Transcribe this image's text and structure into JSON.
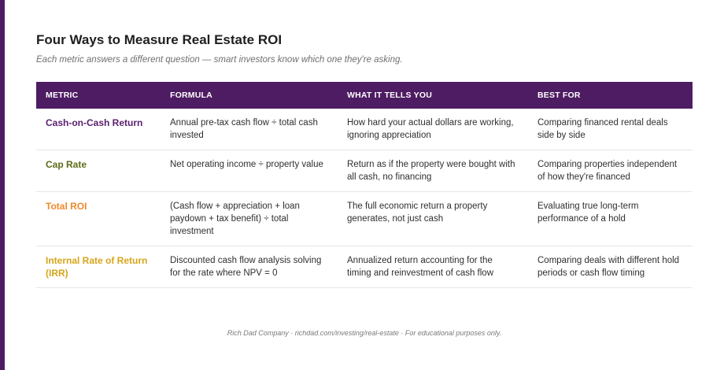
{
  "title": "Four Ways to Measure Real Estate ROI",
  "subtitle": "Each metric answers a different question — smart investors know which one they're asking.",
  "table": {
    "headers": [
      "METRIC",
      "FORMULA",
      "WHAT IT TELLS YOU",
      "BEST FOR"
    ],
    "rows": [
      {
        "metric": "Cash-on-Cash Return",
        "color": "#5a1e6e",
        "formula": "Annual pre-tax cash flow ÷ total cash invested",
        "tells": "How hard your actual dollars are working, ignoring appreciation",
        "best": "Comparing financed rental deals side by side"
      },
      {
        "metric": "Cap Rate",
        "color": "#5f6b16",
        "formula": "Net operating income ÷ property value",
        "tells": "Return as if the property were bought with all cash, no financing",
        "best": "Comparing properties independent of how they're financed"
      },
      {
        "metric": "Total ROI",
        "color": "#ee8a2b",
        "formula": "(Cash flow + appreciation + loan paydown + tax benefit) ÷ total investment",
        "tells": "The full economic return a property generates, not just cash",
        "best": "Evaluating true long-term performance of a hold"
      },
      {
        "metric": "Internal Rate of Return (IRR)",
        "color": "#d6a51a",
        "formula": "Discounted cash flow analysis solving for the rate where NPV = 0",
        "tells": "Annualized return accounting for the timing and reinvestment of cash flow",
        "best": "Comparing deals with different hold periods or cash flow timing"
      }
    ]
  },
  "footer": "Rich Dad Company · richdad.com/investing/real-estate · For educational purposes only."
}
